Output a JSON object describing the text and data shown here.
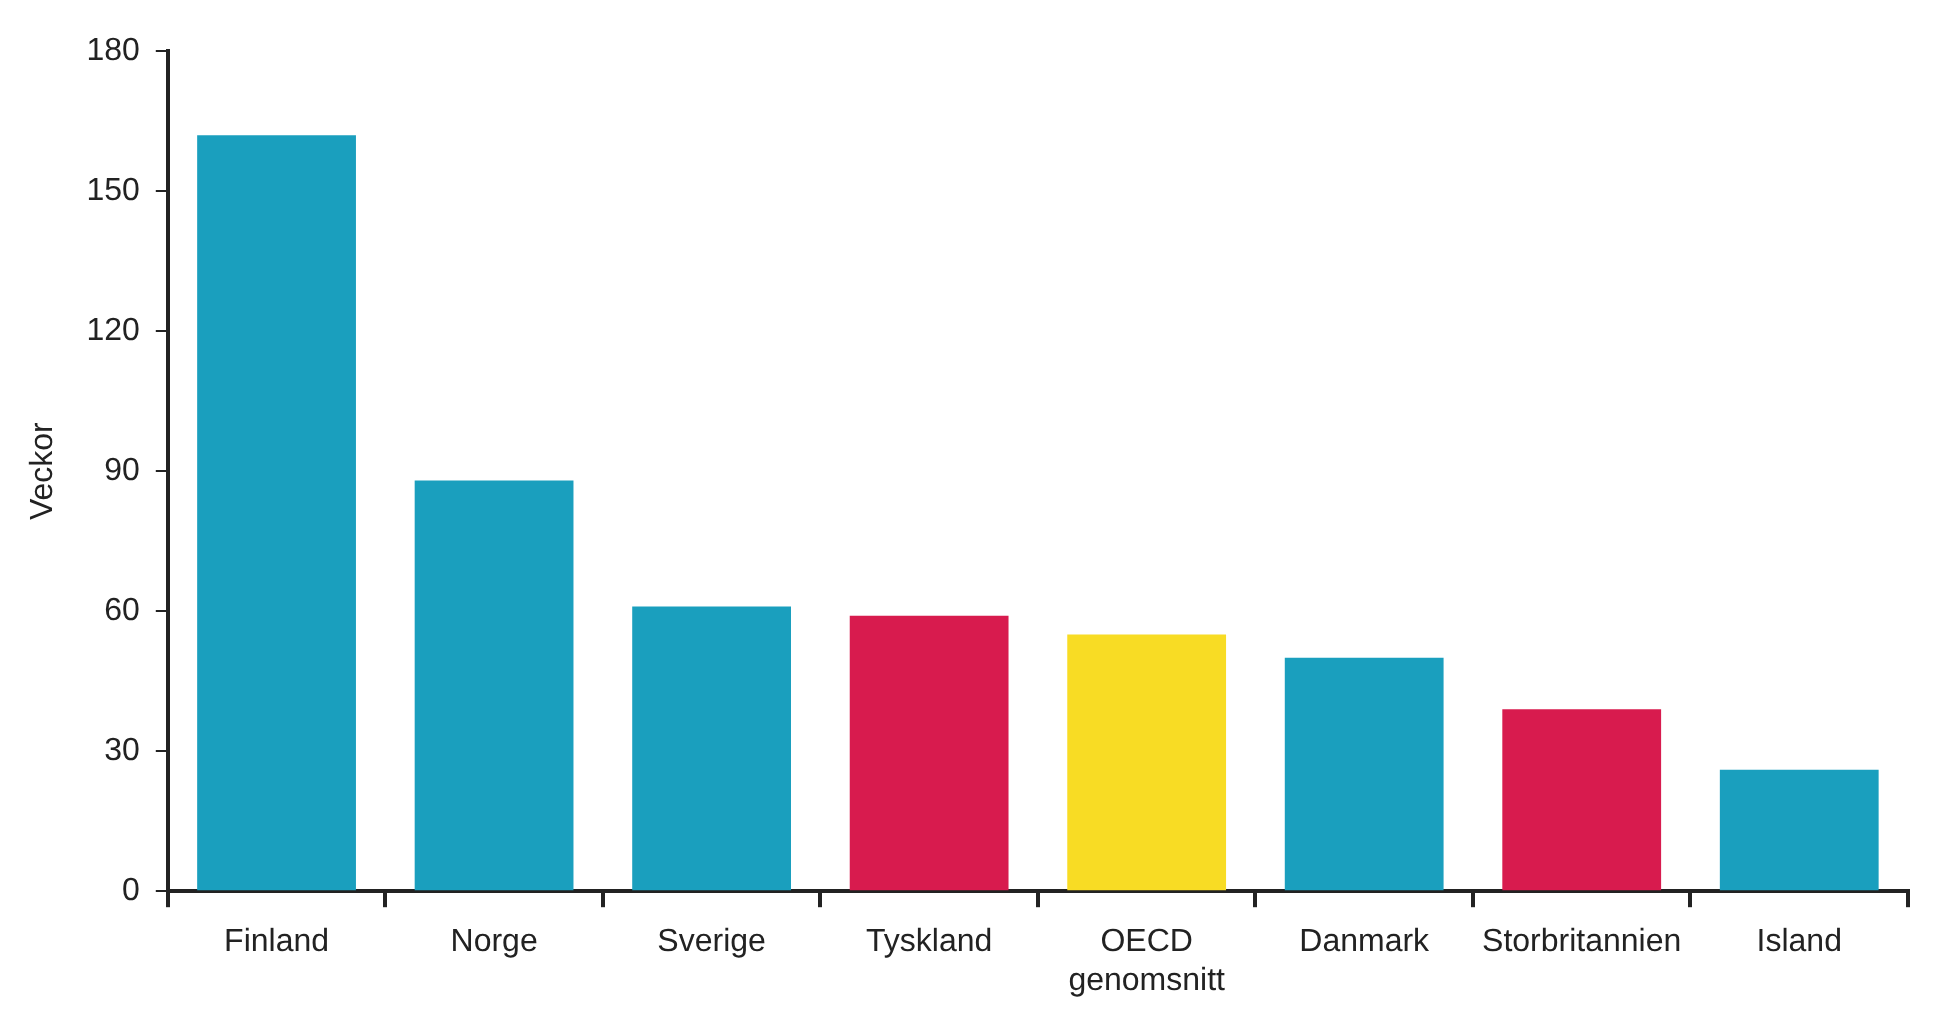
{
  "chart_data": {
    "type": "bar",
    "ylabel": "Veckor",
    "categories": [
      "Finland",
      "Norge",
      "Sverige",
      "Tyskland",
      "OECD genomsnitt",
      "Danmark",
      "Storbritannien",
      "Island"
    ],
    "values": [
      162,
      88,
      61,
      59,
      55,
      50,
      39,
      26
    ],
    "colors": [
      "#1a9fbe",
      "#1a9fbe",
      "#1a9fbe",
      "#d81b4e",
      "#f8dc24",
      "#1a9fbe",
      "#d81b4e",
      "#1a9fbe"
    ],
    "ylim": [
      0,
      180
    ],
    "yticks": [
      0,
      30,
      60,
      90,
      120,
      150,
      180
    ],
    "grid": false,
    "legend": false
  }
}
